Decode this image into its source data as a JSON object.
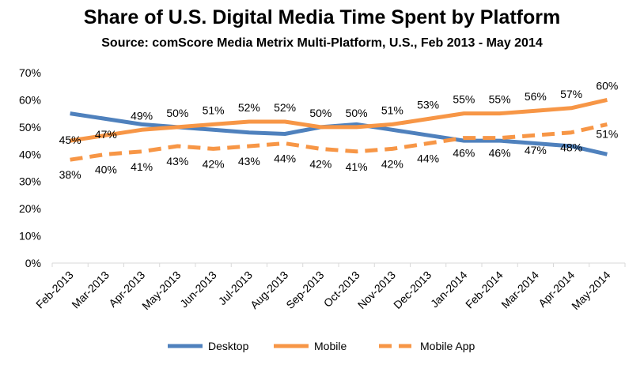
{
  "chart_data": {
    "type": "line",
    "title": "Share of U.S. Digital Media Time Spent by Platform",
    "subtitle": "Source: comScore Media Metrix Multi-Platform, U.S., Feb 2013 - May 2014",
    "xlabel": "",
    "ylabel": "",
    "ylim": [
      0,
      70
    ],
    "yticks": [
      "0%",
      "10%",
      "20%",
      "30%",
      "40%",
      "50%",
      "60%",
      "70%"
    ],
    "grid": false,
    "legend_position": "bottom",
    "categories": [
      "Feb-2013",
      "Mar-2013",
      "Apr-2013",
      "May-2013",
      "Jun-2013",
      "Jul-2013",
      "Aug-2013",
      "Sep-2013",
      "Oct-2013",
      "Nov-2013",
      "Dec-2013",
      "Jan-2014",
      "Feb-2014",
      "Mar-2014",
      "Apr-2014",
      "May-2014"
    ],
    "series": [
      {
        "name": "Desktop",
        "color": "#4F81BD",
        "style": "solid",
        "values": [
          55,
          53,
          51,
          50,
          49,
          48,
          47.5,
          50,
          51,
          49,
          47,
          45,
          45,
          44,
          43,
          40
        ],
        "labels": []
      },
      {
        "name": "Mobile",
        "color": "#F79646",
        "style": "solid",
        "values": [
          45,
          47,
          49,
          50,
          51,
          52,
          52,
          50,
          50,
          51,
          53,
          55,
          55,
          56,
          57,
          60
        ],
        "labels": [
          "45%",
          "47%",
          "49%",
          "50%",
          "51%",
          "52%",
          "52%",
          "50%",
          "50%",
          "51%",
          "53%",
          "55%",
          "55%",
          "56%",
          "57%",
          "60%"
        ]
      },
      {
        "name": "Mobile App",
        "color": "#F79646",
        "style": "dashed",
        "values": [
          38,
          40,
          41,
          43,
          42,
          43,
          44,
          42,
          41,
          42,
          44,
          46,
          46,
          47,
          48,
          51
        ],
        "labels": [
          "38%",
          "40%",
          "41%",
          "43%",
          "42%",
          "43%",
          "44%",
          "42%",
          "41%",
          "42%",
          "44%",
          "46%",
          "46%",
          "47%",
          "48%",
          "51%"
        ]
      }
    ]
  }
}
